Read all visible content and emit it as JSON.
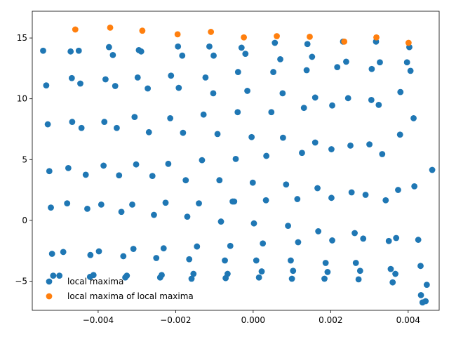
{
  "chart_data": {
    "type": "scatter",
    "title": "",
    "xlabel": "",
    "ylabel": "",
    "xlim": [
      -0.0057,
      0.0048
    ],
    "ylim": [
      -7.4,
      17.2
    ],
    "xticks": [
      -0.004,
      -0.002,
      0.0,
      0.002,
      0.004
    ],
    "xtick_labels": [
      "−0.004",
      "−0.002",
      "0.000",
      "0.002",
      "0.004"
    ],
    "yticks": [
      -5,
      0,
      5,
      10,
      15
    ],
    "ytick_labels": [
      "−5",
      "0",
      "5",
      "10",
      "15"
    ],
    "grid": false,
    "legend_position": "lower-left",
    "series": [
      {
        "name": "local maxima",
        "color": "#1f77b4",
        "points": [
          [
            -0.00542,
            13.95
          ],
          [
            -0.00471,
            13.89
          ],
          [
            -0.0045,
            13.95
          ],
          [
            -0.00372,
            14.25
          ],
          [
            -0.00362,
            13.6
          ],
          [
            -0.00295,
            14.0
          ],
          [
            -0.00289,
            13.89
          ],
          [
            -0.00194,
            14.3
          ],
          [
            -0.00183,
            13.55
          ],
          [
            -0.00113,
            14.3
          ],
          [
            -0.00102,
            13.55
          ],
          [
            -0.0003,
            14.2
          ],
          [
            -0.0002,
            13.7
          ],
          [
            0.00056,
            14.6
          ],
          [
            0.0007,
            13.25
          ],
          [
            0.0014,
            14.5
          ],
          [
            0.00152,
            13.45
          ],
          [
            0.00232,
            14.7
          ],
          [
            0.00217,
            12.6
          ],
          [
            0.0024,
            13.05
          ],
          [
            0.00317,
            14.7
          ],
          [
            0.00327,
            13.0
          ],
          [
            0.00403,
            14.25
          ],
          [
            0.00397,
            13.0
          ],
          [
            0.00306,
            12.45
          ],
          [
            0.00406,
            12.3
          ],
          [
            -0.00534,
            11.1
          ],
          [
            -0.00468,
            11.7
          ],
          [
            -0.00446,
            11.25
          ],
          [
            -0.00381,
            11.6
          ],
          [
            -0.00356,
            11.05
          ],
          [
            -0.00298,
            11.75
          ],
          [
            -0.00272,
            10.85
          ],
          [
            -0.00212,
            11.9
          ],
          [
            -0.00192,
            10.9
          ],
          [
            -0.00123,
            11.75
          ],
          [
            -0.00103,
            10.45
          ],
          [
            -0.00039,
            12.2
          ],
          [
            -0.00015,
            10.65
          ],
          [
            0.00052,
            12.2
          ],
          [
            0.00076,
            10.45
          ],
          [
            0.00138,
            12.35
          ],
          [
            0.0016,
            10.1
          ],
          [
            0.00245,
            10.05
          ],
          [
            0.00305,
            9.9
          ],
          [
            0.0038,
            10.55
          ],
          [
            0.00324,
            9.5
          ],
          [
            0.00131,
            9.25
          ],
          [
            0.00204,
            9.45
          ],
          [
            -0.0053,
            7.9
          ],
          [
            -0.00467,
            8.1
          ],
          [
            -0.00443,
            7.6
          ],
          [
            -0.00384,
            8.1
          ],
          [
            -0.00352,
            7.6
          ],
          [
            -0.00306,
            8.5
          ],
          [
            -0.00269,
            7.25
          ],
          [
            -0.00214,
            8.4
          ],
          [
            -0.00181,
            7.2
          ],
          [
            -0.00128,
            8.7
          ],
          [
            -0.00092,
            7.1
          ],
          [
            -0.0004,
            8.9
          ],
          [
            -4e-05,
            6.85
          ],
          [
            0.00047,
            8.9
          ],
          [
            0.00077,
            6.8
          ],
          [
            0.00126,
            5.55
          ],
          [
            0.0016,
            6.4
          ],
          [
            0.00202,
            5.85
          ],
          [
            0.00251,
            6.15
          ],
          [
            0.003,
            6.25
          ],
          [
            0.00333,
            5.45
          ],
          [
            0.00379,
            7.05
          ],
          [
            0.00414,
            8.4
          ],
          [
            0.00034,
            5.3
          ],
          [
            -0.00526,
            4.05
          ],
          [
            -0.00477,
            4.3
          ],
          [
            -0.00432,
            3.75
          ],
          [
            -0.00386,
            4.5
          ],
          [
            -0.00346,
            3.7
          ],
          [
            -0.00302,
            4.6
          ],
          [
            -0.0026,
            3.65
          ],
          [
            -0.00219,
            4.65
          ],
          [
            -0.00174,
            3.3
          ],
          [
            -0.00132,
            4.95
          ],
          [
            -0.00087,
            3.3
          ],
          [
            -0.00045,
            5.05
          ],
          [
            -1e-05,
            3.1
          ],
          [
            0.00085,
            2.95
          ],
          [
            0.00114,
            1.75
          ],
          [
            0.00166,
            2.65
          ],
          [
            0.00202,
            1.85
          ],
          [
            0.00254,
            2.3
          ],
          [
            0.0029,
            2.1
          ],
          [
            0.00342,
            1.65
          ],
          [
            0.00374,
            2.5
          ],
          [
            0.00416,
            2.8
          ],
          [
            0.00462,
            4.15
          ],
          [
            0.00033,
            1.65
          ],
          [
            -0.00049,
            1.55
          ],
          [
            -0.00522,
            1.05
          ],
          [
            -0.0048,
            1.4
          ],
          [
            -0.00428,
            0.95
          ],
          [
            -0.00392,
            1.3
          ],
          [
            -0.0034,
            0.7
          ],
          [
            -0.00312,
            1.3
          ],
          [
            -0.00256,
            0.45
          ],
          [
            -0.00226,
            1.45
          ],
          [
            -0.0017,
            0.3
          ],
          [
            -0.0014,
            1.4
          ],
          [
            -0.00083,
            -0.1
          ],
          [
            -0.00053,
            1.55
          ],
          [
            2e-05,
            -0.25
          ],
          [
            0.0009,
            -0.45
          ],
          [
            0.00116,
            -1.8
          ],
          [
            0.00168,
            -0.9
          ],
          [
            0.00204,
            -1.65
          ],
          [
            0.00262,
            -1.05
          ],
          [
            0.00284,
            -1.5
          ],
          [
            0.0035,
            -1.7
          ],
          [
            0.00369,
            -1.45
          ],
          [
            0.00426,
            -1.6
          ],
          [
            0.00025,
            -1.9
          ],
          [
            -0.00519,
            -2.75
          ],
          [
            -0.0049,
            -2.6
          ],
          [
            -0.0042,
            -2.85
          ],
          [
            -0.00398,
            -2.55
          ],
          [
            -0.00335,
            -2.95
          ],
          [
            -0.00309,
            -2.35
          ],
          [
            -0.0025,
            -3.1
          ],
          [
            -0.00231,
            -2.3
          ],
          [
            -0.00165,
            -3.2
          ],
          [
            -0.00145,
            -2.15
          ],
          [
            -0.00073,
            -3.3
          ],
          [
            -0.00059,
            -2.1
          ],
          [
            8e-05,
            -3.3
          ],
          [
            0.00097,
            -3.3
          ],
          [
            0.00103,
            -4.15
          ],
          [
            0.00187,
            -3.5
          ],
          [
            0.00192,
            -4.25
          ],
          [
            0.00265,
            -3.5
          ],
          [
            0.00276,
            -4.15
          ],
          [
            0.00355,
            -4.0
          ],
          [
            0.00367,
            -4.4
          ],
          [
            0.00432,
            -3.75
          ],
          [
            0.00022,
            -4.2
          ],
          [
            -0.00516,
            -4.55
          ],
          [
            -0.005,
            -4.55
          ],
          [
            -0.00421,
            -4.65
          ],
          [
            -0.00412,
            -4.5
          ],
          [
            -0.0033,
            -4.7
          ],
          [
            -0.00326,
            -4.55
          ],
          [
            -0.0024,
            -4.7
          ],
          [
            -0.00236,
            -4.5
          ],
          [
            -0.00159,
            -4.8
          ],
          [
            -0.00154,
            -4.4
          ],
          [
            -0.00071,
            -4.75
          ],
          [
            -0.00066,
            -4.4
          ],
          [
            0.00015,
            -4.7
          ],
          [
            0.001,
            -4.8
          ],
          [
            0.00184,
            -4.8
          ],
          [
            0.00272,
            -4.85
          ],
          [
            0.0036,
            -5.1
          ],
          [
            0.00448,
            -5.3
          ],
          [
            0.00433,
            -6.15
          ],
          [
            0.00445,
            -6.65
          ],
          [
            0.00437,
            -6.75
          ]
        ]
      },
      {
        "name": "local maxima of local maxima",
        "color": "#ff7f0e",
        "points": [
          [
            -0.00459,
            15.7
          ],
          [
            -0.00369,
            15.85
          ],
          [
            -0.00286,
            15.6
          ],
          [
            -0.00195,
            15.3
          ],
          [
            -0.00109,
            15.5
          ],
          [
            -0.00024,
            15.05
          ],
          [
            0.00061,
            15.15
          ],
          [
            0.00146,
            15.1
          ],
          [
            0.00235,
            14.7
          ],
          [
            0.00318,
            15.05
          ],
          [
            0.00401,
            14.6
          ]
        ]
      }
    ]
  }
}
